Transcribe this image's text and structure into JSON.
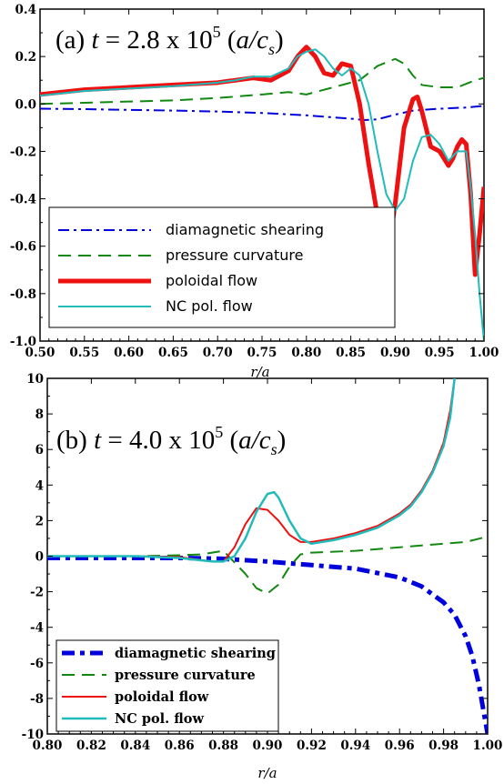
{
  "chart_data": [
    {
      "type": "line",
      "panel": "a",
      "title": {
        "prefix": "(a) ",
        "var": "t",
        "mid": " = 2.8 x 10",
        "exp": "5",
        "unit_open": " (",
        "unit_var": "a/c",
        "unit_sub": "s",
        "unit_close": ")"
      },
      "xlabel": "r/a",
      "xlim": [
        0.5,
        1.0
      ],
      "ylim": [
        -1.0,
        0.4
      ],
      "xticks": [
        "0.50",
        "0.55",
        "0.60",
        "0.65",
        "0.70",
        "0.75",
        "0.80",
        "0.85",
        "0.90",
        "0.95",
        "1.00"
      ],
      "yticks": [
        "0.4",
        "0.2",
        "0.0",
        "-0.2",
        "-0.4",
        "-0.6",
        "-0.8",
        "-1.0"
      ],
      "legend_position": "bottom-left",
      "series": [
        {
          "name": "diamagnetic shearing",
          "color": "#0000dd",
          "dash": "dashdot",
          "width": 2,
          "x": [
            0.5,
            0.55,
            0.6,
            0.65,
            0.7,
            0.75,
            0.8,
            0.85,
            0.865,
            0.88,
            0.9,
            0.92,
            0.95,
            0.98,
            1.0
          ],
          "y": [
            -0.02,
            -0.022,
            -0.025,
            -0.028,
            -0.032,
            -0.038,
            -0.048,
            -0.062,
            -0.068,
            -0.065,
            -0.045,
            -0.028,
            -0.02,
            -0.015,
            -0.008
          ]
        },
        {
          "name": "pressure curvature",
          "color": "#118811",
          "dash": "dashed",
          "width": 2,
          "x": [
            0.5,
            0.55,
            0.6,
            0.65,
            0.7,
            0.75,
            0.78,
            0.8,
            0.83,
            0.86,
            0.88,
            0.9,
            0.91,
            0.92,
            0.93,
            0.95,
            0.97,
            0.99,
            1.0
          ],
          "y": [
            0.0,
            0.005,
            0.01,
            0.015,
            0.025,
            0.04,
            0.05,
            0.04,
            0.07,
            0.1,
            0.16,
            0.19,
            0.17,
            0.12,
            0.08,
            0.07,
            0.07,
            0.1,
            0.11
          ]
        },
        {
          "name": "poloidal flow",
          "color": "#ee1111",
          "dash": "solid",
          "width": 5,
          "x": [
            0.5,
            0.55,
            0.6,
            0.65,
            0.7,
            0.72,
            0.74,
            0.76,
            0.78,
            0.79,
            0.8,
            0.81,
            0.82,
            0.83,
            0.84,
            0.85,
            0.86,
            0.87,
            0.88,
            0.89,
            0.895,
            0.9,
            0.91,
            0.92,
            0.925,
            0.93,
            0.94,
            0.95,
            0.96,
            0.965,
            0.97,
            0.975,
            0.98,
            0.985,
            0.99,
            0.995,
            1.0
          ],
          "y": [
            0.04,
            0.06,
            0.07,
            0.08,
            0.09,
            0.1,
            0.11,
            0.1,
            0.14,
            0.2,
            0.24,
            0.2,
            0.13,
            0.12,
            0.17,
            0.16,
            0.0,
            -0.25,
            -0.47,
            -0.57,
            -0.55,
            -0.42,
            -0.1,
            0.02,
            0.03,
            -0.03,
            -0.18,
            -0.2,
            -0.26,
            -0.23,
            -0.18,
            -0.15,
            -0.17,
            -0.38,
            -0.72,
            -0.55,
            -0.35
          ]
        },
        {
          "name": "NC pol. flow",
          "color": "#22bbbb",
          "dash": "solid",
          "width": 2,
          "x": [
            0.5,
            0.55,
            0.6,
            0.65,
            0.7,
            0.72,
            0.74,
            0.76,
            0.78,
            0.79,
            0.8,
            0.81,
            0.82,
            0.83,
            0.84,
            0.85,
            0.86,
            0.87,
            0.88,
            0.89,
            0.9,
            0.91,
            0.92,
            0.93,
            0.94,
            0.95,
            0.96,
            0.97,
            0.98,
            0.985,
            0.99,
            0.995,
            1.0
          ],
          "y": [
            0.035,
            0.055,
            0.065,
            0.075,
            0.09,
            0.1,
            0.115,
            0.115,
            0.15,
            0.2,
            0.22,
            0.23,
            0.2,
            0.15,
            0.12,
            0.15,
            0.12,
            0.0,
            -0.2,
            -0.38,
            -0.45,
            -0.4,
            -0.24,
            -0.14,
            -0.13,
            -0.17,
            -0.24,
            -0.2,
            -0.2,
            -0.35,
            -0.55,
            -0.8,
            -1.0
          ]
        }
      ]
    },
    {
      "type": "line",
      "panel": "b",
      "title": {
        "prefix": "(b) ",
        "var": "t",
        "mid": " = 4.0 x 10",
        "exp": "5",
        "unit_open": " (",
        "unit_var": "a/c",
        "unit_sub": "s",
        "unit_close": ")"
      },
      "xlabel": "r/a",
      "xlim": [
        0.8,
        1.0
      ],
      "ylim": [
        -10,
        10
      ],
      "xticks": [
        "0.80",
        "0.82",
        "0.84",
        "0.86",
        "0.88",
        "0.90",
        "0.92",
        "0.94",
        "0.96",
        "0.98",
        "1.00"
      ],
      "yticks": [
        "10",
        "8",
        "6",
        "4",
        "2",
        "0",
        "-2",
        "-4",
        "-6",
        "-8",
        "-10"
      ],
      "legend_position": "bottom-left",
      "series": [
        {
          "name": "diamagnetic shearing",
          "color": "#0000dd",
          "dash": "dashdot",
          "width": 5,
          "x": [
            0.8,
            0.84,
            0.86,
            0.88,
            0.9,
            0.92,
            0.94,
            0.96,
            0.97,
            0.98,
            0.985,
            0.99,
            0.993,
            0.996,
            0.998,
            1.0
          ],
          "y": [
            -0.1,
            -0.1,
            -0.1,
            -0.15,
            -0.3,
            -0.5,
            -0.7,
            -1.2,
            -1.7,
            -2.6,
            -3.3,
            -4.5,
            -5.6,
            -7.2,
            -8.6,
            -10.0
          ]
        },
        {
          "name": "pressure curvature",
          "color": "#118811",
          "dash": "dashed",
          "width": 2,
          "x": [
            0.8,
            0.84,
            0.86,
            0.87,
            0.88,
            0.89,
            0.895,
            0.9,
            0.905,
            0.91,
            0.915,
            0.92,
            0.94,
            0.96,
            0.98,
            0.99,
            1.0
          ],
          "y": [
            0.0,
            0.0,
            0.05,
            0.1,
            0.3,
            -1.0,
            -1.8,
            -2.1,
            -1.6,
            -0.6,
            0.1,
            0.2,
            0.3,
            0.5,
            0.7,
            0.8,
            1.1
          ]
        },
        {
          "name": "poloidal flow",
          "color": "#ee1111",
          "dash": "solid",
          "width": 2,
          "x": [
            0.8,
            0.84,
            0.86,
            0.875,
            0.88,
            0.885,
            0.89,
            0.895,
            0.9,
            0.905,
            0.91,
            0.915,
            0.92,
            0.93,
            0.94,
            0.95,
            0.96,
            0.965,
            0.97,
            0.975,
            0.98,
            0.983,
            0.985
          ],
          "y": [
            0.0,
            0.0,
            -0.05,
            -0.3,
            -0.3,
            0.5,
            1.8,
            2.7,
            2.6,
            2.0,
            1.2,
            0.8,
            0.8,
            1.0,
            1.3,
            1.7,
            2.4,
            2.9,
            3.7,
            4.8,
            6.4,
            8.2,
            10.0
          ]
        },
        {
          "name": "NC pol. flow",
          "color": "#22bbbb",
          "dash": "solid",
          "width": 2.5,
          "x": [
            0.8,
            0.84,
            0.86,
            0.875,
            0.88,
            0.885,
            0.89,
            0.895,
            0.9,
            0.903,
            0.905,
            0.91,
            0.915,
            0.92,
            0.93,
            0.94,
            0.95,
            0.96,
            0.965,
            0.97,
            0.975,
            0.98,
            0.983,
            0.985
          ],
          "y": [
            0.0,
            0.0,
            -0.1,
            -0.3,
            -0.3,
            0.0,
            1.0,
            2.5,
            3.5,
            3.6,
            3.3,
            2.0,
            1.0,
            0.7,
            0.9,
            1.2,
            1.6,
            2.3,
            2.8,
            3.6,
            4.7,
            6.2,
            7.8,
            10.0
          ]
        }
      ]
    }
  ]
}
